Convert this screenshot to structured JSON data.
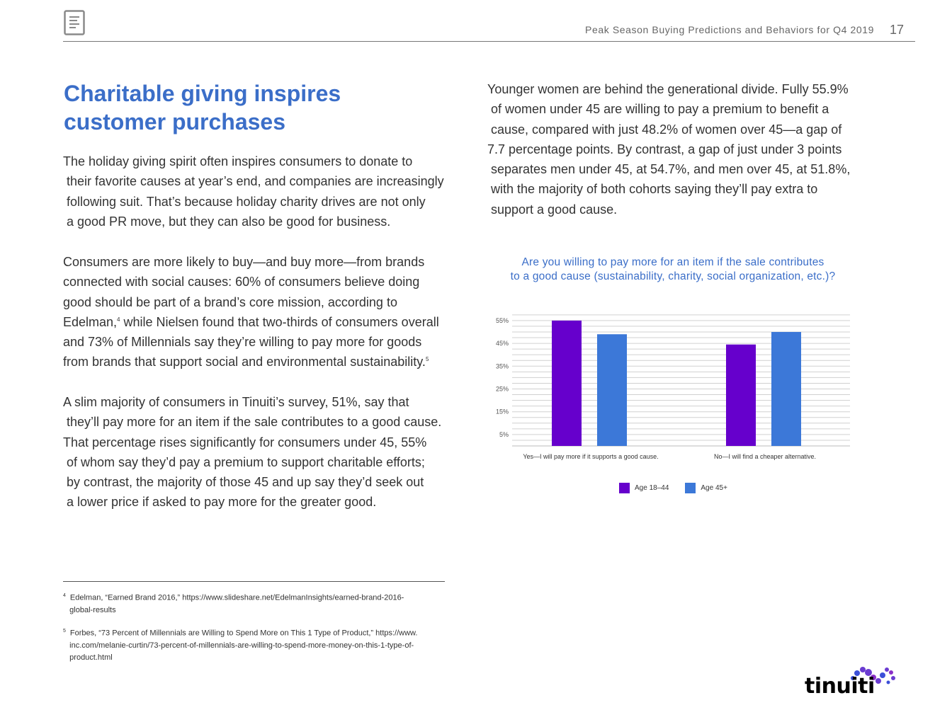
{
  "header": {
    "title": "Peak Season Buying Predictions and Behaviors for Q4 2019",
    "page_number": "17",
    "icon": "document-icon"
  },
  "left": {
    "headline": "Charitable giving inspires\ncustomer purchases",
    "para1": "The holiday giving spirit often inspires consumers to donate to\n their favorite causes at year’s end, and companies are increasingly\n following suit. That’s because holiday charity drives are not only\n a good PR move, but they can also be good for business.",
    "para2_a": "Consumers are more likely to buy—and buy more—from brands\nconnected with social causes: 60% of consumers believe doing\ngood should be part of a brand’s core mission, according to\nEdelman,",
    "para2_ref4": "4",
    "para2_b": " while Nielsen found that two-thirds of consumers overall\nand 73% of Millennials say they’re willing to pay more for goods\nfrom brands that support social and environmental sustainability.",
    "para2_ref5": "5",
    "para3": "A slim majority of consumers in Tinuiti’s survey, 51%, say that\n they’ll pay more for an item if the sale contributes to a good cause.\nThat percentage rises significantly for consumers under 45, 55%\n of whom say they’d pay a premium to support charitable efforts;\n by contrast, the majority of those 45 and up say they’d seek out\n a lower price if asked to pay more for the greater good."
  },
  "right": {
    "para": "Younger women are behind the generational divide. Fully 55.9%\n of women under 45 are willing to pay a premium to benefit a\n cause, compared with just 48.2% of women over 45—a gap of\n7.7 percentage points. By contrast, a gap of just under 3 points\n separates men under 45, at 54.7%, and men over 45, at 51.8%,\n with the majority of both cohorts saying they’ll pay extra to\n support a good cause."
  },
  "footnotes": [
    {
      "num": "4",
      "text": "Edelman, “Earned Brand 2016,” https://www.slideshare.net/EdelmanInsights/earned-brand-2016-\n   global-results"
    },
    {
      "num": "5",
      "text": "Forbes, “73 Percent of Millennials are Willing to Spend More on This 1 Type of Product,” https://www.\n   inc.com/melanie-curtin/73-percent-of-millennials-are-willing-to-spend-more-money-on-this-1-type-of-\n   product.html"
    }
  ],
  "chart_data": {
    "type": "bar",
    "title": "Are you willing to pay more for an item if the sale contributes\nto a good cause (sustainability, charity, social organization, etc.)?",
    "categories": [
      "Yes—I will pay more if it supports a good cause.",
      "No—I will find a cheaper alternative."
    ],
    "series": [
      {
        "name": "Age 18–44",
        "values": [
          55,
          44.5
        ],
        "color": "#6600cc"
      },
      {
        "name": "Age 45+",
        "values": [
          49,
          50
        ],
        "color": "#3c78d8"
      }
    ],
    "y_ticks": [
      "5%",
      "15%",
      "25%",
      "35%",
      "45%",
      "55%"
    ],
    "ylim": [
      0,
      59
    ],
    "grid": true,
    "legend_position": "bottom"
  },
  "logo": {
    "text": "tinuiti",
    "colors": [
      "#6a3bd1",
      "#3b4fd8",
      "#8a2fc8"
    ]
  }
}
